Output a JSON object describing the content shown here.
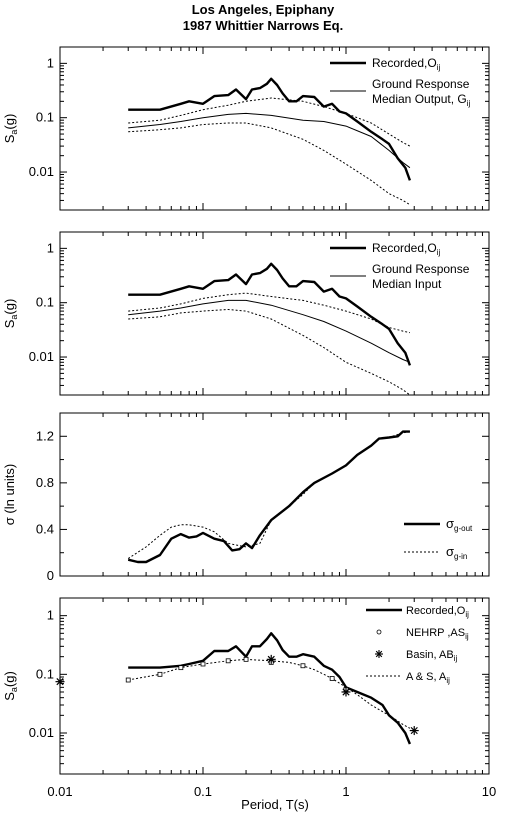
{
  "title": "Los Angeles, Epiphany",
  "subtitle": "1987 Whittier Narrows Eq.",
  "xlabel": "Period, T(s)",
  "x_ticks": [
    "0.01",
    "0.1",
    "1",
    "10"
  ],
  "chart_data": [
    {
      "type": "line",
      "panel": 1,
      "ylabel": "S",
      "ylabel_sub": "a",
      "ylabel_suffix": "(g)",
      "xscale": "log",
      "yscale": "log",
      "xlim": [
        0.01,
        10
      ],
      "ylim": [
        0.002,
        2
      ],
      "y_ticks": [
        "1",
        "0.1",
        "0.01"
      ],
      "legend_position": "top-right",
      "legend": [
        {
          "label": "Recorded,O",
          "sub": "ij"
        },
        {
          "label": "Ground Response",
          "label2": "Median Output, G",
          "sub": "ij"
        }
      ],
      "series": [
        {
          "style": "thick",
          "x": [
            0.03,
            0.05,
            0.07,
            0.08,
            0.1,
            0.12,
            0.15,
            0.17,
            0.2,
            0.22,
            0.25,
            0.28,
            0.3,
            0.33,
            0.36,
            0.4,
            0.45,
            0.5,
            0.6,
            0.7,
            0.8,
            0.9,
            1.0,
            1.2,
            1.5,
            1.8,
            2.0,
            2.3,
            2.6,
            2.8
          ],
          "y": [
            0.14,
            0.14,
            0.18,
            0.2,
            0.18,
            0.25,
            0.26,
            0.33,
            0.22,
            0.33,
            0.35,
            0.42,
            0.52,
            0.4,
            0.28,
            0.2,
            0.2,
            0.25,
            0.24,
            0.16,
            0.18,
            0.13,
            0.12,
            0.085,
            0.055,
            0.04,
            0.033,
            0.018,
            0.012,
            0.007
          ]
        },
        {
          "style": "thin",
          "x": [
            0.03,
            0.05,
            0.07,
            0.1,
            0.15,
            0.2,
            0.3,
            0.5,
            0.7,
            1.0,
            1.5,
            2.0,
            2.5,
            2.8
          ],
          "y": [
            0.065,
            0.075,
            0.085,
            0.1,
            0.115,
            0.12,
            0.11,
            0.09,
            0.085,
            0.07,
            0.045,
            0.025,
            0.015,
            0.012
          ]
        },
        {
          "style": "dotted",
          "x": [
            0.03,
            0.05,
            0.07,
            0.1,
            0.15,
            0.2,
            0.3,
            0.5,
            0.7,
            1.0,
            1.5,
            2.0,
            2.5,
            2.8
          ],
          "y": [
            0.08,
            0.09,
            0.11,
            0.14,
            0.17,
            0.2,
            0.23,
            0.2,
            0.16,
            0.12,
            0.08,
            0.05,
            0.035,
            0.03
          ]
        },
        {
          "style": "dotted",
          "x": [
            0.03,
            0.05,
            0.07,
            0.1,
            0.15,
            0.2,
            0.3,
            0.5,
            0.7,
            1.0,
            1.5,
            2.0,
            2.5,
            2.8
          ],
          "y": [
            0.055,
            0.06,
            0.065,
            0.075,
            0.08,
            0.08,
            0.065,
            0.04,
            0.025,
            0.014,
            0.007,
            0.004,
            0.003,
            0.0025
          ]
        }
      ]
    },
    {
      "type": "line",
      "panel": 2,
      "ylabel": "S",
      "ylabel_sub": "a",
      "ylabel_suffix": "(g)",
      "xscale": "log",
      "yscale": "log",
      "xlim": [
        0.01,
        10
      ],
      "ylim": [
        0.002,
        2
      ],
      "y_ticks": [
        "1",
        "0.1",
        "0.01"
      ],
      "legend_position": "top-right",
      "legend": [
        {
          "label": "Recorded,O",
          "sub": "ij"
        },
        {
          "label": "Ground Response",
          "label2": "Median Input",
          "sub": ""
        }
      ],
      "series": [
        {
          "style": "thick",
          "x": [
            0.03,
            0.05,
            0.07,
            0.08,
            0.1,
            0.12,
            0.15,
            0.17,
            0.2,
            0.22,
            0.25,
            0.28,
            0.3,
            0.33,
            0.36,
            0.4,
            0.45,
            0.5,
            0.6,
            0.7,
            0.8,
            0.9,
            1.0,
            1.2,
            1.5,
            1.8,
            2.0,
            2.3,
            2.6,
            2.8
          ],
          "y": [
            0.14,
            0.14,
            0.18,
            0.2,
            0.18,
            0.25,
            0.26,
            0.33,
            0.22,
            0.33,
            0.35,
            0.42,
            0.52,
            0.4,
            0.28,
            0.2,
            0.2,
            0.25,
            0.24,
            0.16,
            0.18,
            0.13,
            0.12,
            0.085,
            0.055,
            0.04,
            0.033,
            0.018,
            0.012,
            0.007
          ]
        },
        {
          "style": "thin",
          "x": [
            0.03,
            0.05,
            0.07,
            0.1,
            0.15,
            0.2,
            0.3,
            0.5,
            0.7,
            1.0,
            1.5,
            2.0,
            2.5,
            2.8
          ],
          "y": [
            0.06,
            0.07,
            0.08,
            0.095,
            0.11,
            0.11,
            0.09,
            0.06,
            0.045,
            0.03,
            0.018,
            0.012,
            0.009,
            0.008
          ]
        },
        {
          "style": "dotted",
          "x": [
            0.03,
            0.05,
            0.07,
            0.1,
            0.15,
            0.2,
            0.3,
            0.5,
            0.7,
            1.0,
            1.5,
            2.0,
            2.5,
            2.8
          ],
          "y": [
            0.07,
            0.08,
            0.095,
            0.12,
            0.14,
            0.15,
            0.13,
            0.11,
            0.09,
            0.07,
            0.05,
            0.035,
            0.03,
            0.028
          ]
        },
        {
          "style": "dotted",
          "x": [
            0.03,
            0.05,
            0.07,
            0.1,
            0.15,
            0.2,
            0.3,
            0.5,
            0.7,
            1.0,
            1.5,
            2.0,
            2.5,
            2.8
          ],
          "y": [
            0.05,
            0.055,
            0.065,
            0.07,
            0.075,
            0.07,
            0.05,
            0.025,
            0.015,
            0.008,
            0.005,
            0.0035,
            0.0025,
            0.002
          ]
        }
      ]
    },
    {
      "type": "line",
      "panel": 3,
      "ylabel": "σ (ln units)",
      "xscale": "log",
      "yscale": "linear",
      "xlim": [
        0.01,
        10
      ],
      "ylim": [
        0,
        1.4
      ],
      "y_ticks": [
        "1.2",
        "0.8",
        "0.4",
        "0"
      ],
      "y_tick_values": [
        1.2,
        0.8,
        0.4,
        0
      ],
      "legend_position": "bottom-right",
      "legend": [
        {
          "label": "σ",
          "sub": "g-out"
        },
        {
          "label": "σ",
          "sub": "g-in"
        }
      ],
      "series": [
        {
          "style": "thick",
          "x": [
            0.03,
            0.035,
            0.04,
            0.05,
            0.06,
            0.07,
            0.08,
            0.09,
            0.1,
            0.12,
            0.14,
            0.16,
            0.18,
            0.2,
            0.22,
            0.25,
            0.3,
            0.4,
            0.5,
            0.6,
            0.8,
            1.0,
            1.2,
            1.5,
            1.7,
            2.0,
            2.3,
            2.5,
            2.8
          ],
          "y": [
            0.14,
            0.12,
            0.12,
            0.18,
            0.32,
            0.36,
            0.33,
            0.34,
            0.37,
            0.32,
            0.3,
            0.22,
            0.23,
            0.28,
            0.24,
            0.35,
            0.48,
            0.6,
            0.72,
            0.8,
            0.88,
            0.95,
            1.04,
            1.12,
            1.18,
            1.19,
            1.2,
            1.24,
            1.24
          ]
        },
        {
          "style": "dotted",
          "x": [
            0.03,
            0.04,
            0.05,
            0.06,
            0.07,
            0.08,
            0.1,
            0.12,
            0.15,
            0.2,
            0.25,
            0.3,
            0.4,
            0.5,
            0.6,
            0.8,
            1.0,
            1.2,
            1.5,
            1.7,
            2.0,
            2.5,
            2.8
          ],
          "y": [
            0.15,
            0.25,
            0.35,
            0.42,
            0.44,
            0.44,
            0.42,
            0.38,
            0.28,
            0.25,
            0.28,
            0.48,
            0.6,
            0.7,
            0.8,
            0.88,
            0.95,
            1.04,
            1.12,
            1.18,
            1.19,
            1.23,
            1.24
          ]
        }
      ]
    },
    {
      "type": "line",
      "panel": 4,
      "ylabel": "S",
      "ylabel_sub": "a",
      "ylabel_suffix": "(g)",
      "xscale": "log",
      "yscale": "log",
      "xlim": [
        0.01,
        10
      ],
      "ylim": [
        0.002,
        2
      ],
      "y_ticks": [
        "1",
        "0.1",
        "0.01"
      ],
      "legend_position": "top-right",
      "legend": [
        {
          "label": "Recorded,O",
          "sub": "ij"
        },
        {
          "label": "NEHRP ,AS",
          "sub": "ij"
        },
        {
          "label": "Basin, AB",
          "sub": "ij"
        },
        {
          "label": "A & S, A",
          "sub": "ij"
        }
      ],
      "series": [
        {
          "style": "thick",
          "x": [
            0.03,
            0.05,
            0.07,
            0.08,
            0.1,
            0.12,
            0.15,
            0.17,
            0.2,
            0.22,
            0.25,
            0.28,
            0.3,
            0.33,
            0.36,
            0.4,
            0.45,
            0.5,
            0.6,
            0.7,
            0.8,
            0.9,
            1.0,
            1.2,
            1.5,
            1.8,
            2.0,
            2.3,
            2.6,
            2.8
          ],
          "y": [
            0.13,
            0.13,
            0.14,
            0.15,
            0.17,
            0.25,
            0.25,
            0.3,
            0.2,
            0.3,
            0.3,
            0.4,
            0.5,
            0.38,
            0.26,
            0.2,
            0.2,
            0.22,
            0.2,
            0.14,
            0.12,
            0.09,
            0.06,
            0.05,
            0.04,
            0.03,
            0.02,
            0.015,
            0.01,
            0.0065
          ]
        },
        {
          "style": "dotted",
          "x": [
            0.03,
            0.05,
            0.07,
            0.1,
            0.15,
            0.2,
            0.3,
            0.4,
            0.5,
            0.6,
            0.7,
            0.8,
            1.0,
            1.2,
            1.5,
            2.0,
            2.5,
            2.8
          ],
          "y": [
            0.08,
            0.1,
            0.13,
            0.15,
            0.17,
            0.18,
            0.17,
            0.16,
            0.14,
            0.12,
            0.1,
            0.085,
            0.06,
            0.045,
            0.03,
            0.02,
            0.014,
            0.012
          ]
        },
        {
          "style": "squares",
          "x": [
            0.03,
            0.05,
            0.07,
            0.1,
            0.15,
            0.2,
            0.3,
            0.5,
            0.8,
            1.0
          ],
          "y": [
            0.08,
            0.1,
            0.13,
            0.15,
            0.17,
            0.18,
            0.16,
            0.14,
            0.085,
            0.055
          ]
        },
        {
          "style": "stars",
          "x": [
            0.01,
            0.3,
            1.0,
            3.0
          ],
          "y": [
            0.075,
            0.18,
            0.05,
            0.011
          ]
        }
      ]
    }
  ]
}
